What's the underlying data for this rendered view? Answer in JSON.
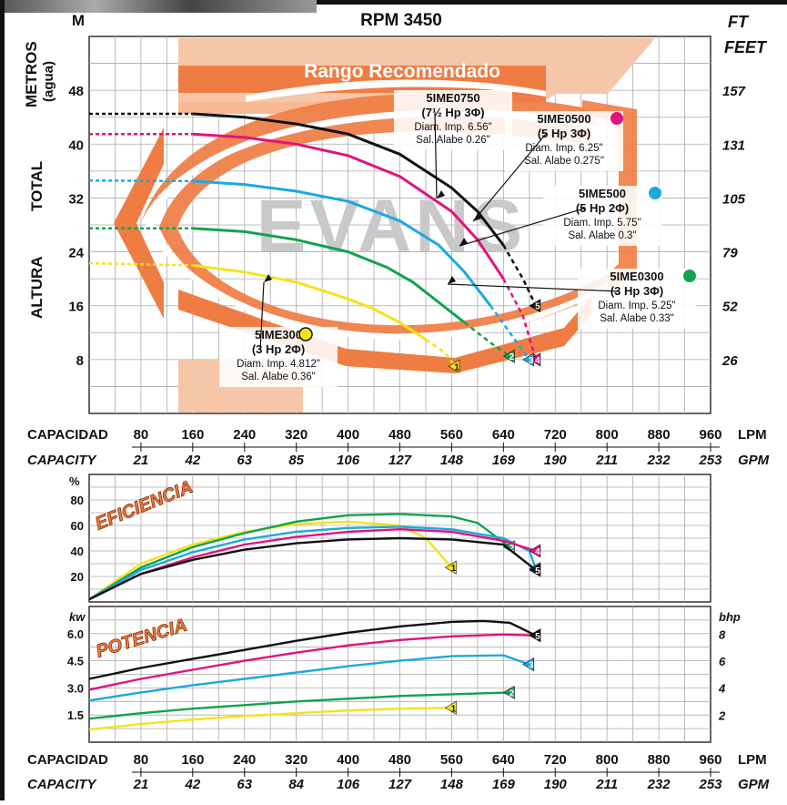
{
  "header": {
    "rpm": "RPM 3450",
    "unit_m": "M",
    "unit_ft": "FT",
    "unit_feet": "FEET",
    "axis_left_1": "METROS",
    "axis_left_2": "(agua)",
    "axis_left_3": "TOTAL",
    "axis_left_4": "ALTURA",
    "range_label": "Rango Recomendado",
    "watermark": "EVANS"
  },
  "axes": {
    "capacidad": "CAPACIDAD",
    "capacity": "CAPACITY",
    "lpm": "LPM",
    "gpm": "GPM",
    "eff_pct": "%",
    "kw": "kw",
    "bhp": "bhp",
    "eficiencia": "EFICIENCIA",
    "potencia": "POTENCIA"
  },
  "chart_data": [
    {
      "type": "line",
      "title": "RPM 3450",
      "xlabel": "CAPACIDAD (LPM) / CAPACITY (GPM)",
      "ylabel": "ALTURA TOTAL METROS (agua) / FT FEET",
      "x_ticks_lpm": [
        80,
        160,
        240,
        320,
        400,
        480,
        560,
        640,
        720,
        800,
        880,
        960
      ],
      "x_ticks_gpm": [
        21,
        42,
        63,
        85,
        106,
        127,
        148,
        169,
        190,
        211,
        232,
        253
      ],
      "x_ticks_gpm_bottom": [
        21,
        42,
        63,
        84,
        106,
        127,
        148,
        169,
        190,
        211,
        232,
        253
      ],
      "xlim": [
        0,
        960
      ],
      "ylim": [
        0,
        56
      ],
      "y_ticks_m": [
        8,
        16,
        24,
        32,
        40,
        48
      ],
      "y_ticks_ft": [
        26,
        52,
        79,
        105,
        131,
        157
      ],
      "grid": true,
      "series": [
        {
          "name": "5IME0750",
          "hp": "(7½ Hp 3Φ)",
          "imp": "Diam. Imp. 6.56\"",
          "alabe": "Sal. Alabe 0.26\"",
          "color": "#111111",
          "tag": "5",
          "x": [
            0,
            160,
            240,
            320,
            400,
            480,
            560,
            600,
            640,
            670,
            690
          ],
          "y": [
            44.5,
            44.5,
            44,
            43,
            41.5,
            38.5,
            33.5,
            30,
            25,
            20,
            16
          ]
        },
        {
          "name": "5IME0500",
          "hp": "(5 Hp 3Φ)",
          "imp": "Diam. Imp. 6.25\"",
          "alabe": "Sal. Alabe 0.275\"",
          "color": "#e2127f",
          "tag": "4",
          "x": [
            0,
            160,
            240,
            320,
            400,
            480,
            560,
            600,
            640,
            670,
            690
          ],
          "y": [
            41.5,
            41.5,
            41,
            40,
            38.3,
            35.2,
            30,
            25.8,
            20,
            14.5,
            8
          ]
        },
        {
          "name": "5IME500",
          "hp": "(5 Hp 2Φ)",
          "imp": "Diam. Imp. 5.75\"",
          "alabe": "Sal. Alabe 0.3\"",
          "color": "#1ba9e0",
          "tag": "3",
          "x": [
            0,
            160,
            240,
            320,
            400,
            480,
            540,
            580,
            620,
            650,
            680
          ],
          "y": [
            34.6,
            34.5,
            34,
            33,
            31.5,
            28.6,
            25,
            21,
            16,
            12,
            8
          ]
        },
        {
          "name": "5IME0300",
          "hp": "(3 Hp 3Φ)",
          "imp": "Diam. Imp. 5.25\"",
          "alabe": "Sal. Alabe 0.33\"",
          "color": "#11a34f",
          "tag": "2",
          "x": [
            0,
            160,
            240,
            320,
            400,
            460,
            500,
            540,
            580,
            620,
            650
          ],
          "y": [
            27.5,
            27.5,
            27,
            25.8,
            24,
            21.7,
            19.5,
            16.5,
            13.5,
            10.5,
            8.5
          ]
        },
        {
          "name": "5IME300",
          "hp": "(3 Hp 2Φ)",
          "imp": "Diam. Imp. 4.812\"",
          "alabe": "Sal. Alabe 0.36\"",
          "color": "#f5e21a",
          "tag": "1",
          "x": [
            0,
            160,
            240,
            320,
            400,
            440,
            480,
            520,
            550,
            565
          ],
          "y": [
            22.3,
            22,
            21,
            19.5,
            17,
            15.5,
            13.5,
            11,
            9,
            7
          ]
        }
      ]
    },
    {
      "type": "line",
      "title": "EFICIENCIA",
      "ylabel": "%",
      "y_ticks": [
        20,
        40,
        60,
        80
      ],
      "ylim": [
        0,
        100
      ],
      "xlim": [
        0,
        960
      ],
      "grid": true,
      "series": [
        {
          "name": "1",
          "color": "#f5e21a",
          "x": [
            0,
            80,
            160,
            240,
            320,
            400,
            480,
            520,
            560
          ],
          "y": [
            2,
            30,
            45,
            55,
            61,
            63,
            60,
            50,
            27
          ]
        },
        {
          "name": "2",
          "color": "#11a34f",
          "x": [
            0,
            80,
            160,
            240,
            320,
            400,
            480,
            560,
            600,
            650
          ],
          "y": [
            2,
            27,
            43,
            54,
            63,
            68,
            69,
            67,
            62,
            43
          ]
        },
        {
          "name": "3",
          "color": "#1ba9e0",
          "x": [
            0,
            80,
            160,
            240,
            320,
            400,
            480,
            560,
            640,
            680,
            690
          ],
          "y": [
            2,
            25,
            39,
            49,
            55,
            58,
            59,
            57,
            50,
            40,
            26
          ]
        },
        {
          "name": "4",
          "color": "#e2127f",
          "x": [
            0,
            80,
            160,
            240,
            320,
            400,
            480,
            560,
            640,
            690
          ],
          "y": [
            2,
            22,
            35,
            45,
            51,
            55,
            57,
            55,
            48,
            40
          ]
        },
        {
          "name": "5",
          "color": "#111111",
          "x": [
            0,
            80,
            160,
            240,
            320,
            400,
            480,
            560,
            640,
            690
          ],
          "y": [
            2,
            22,
            33,
            41,
            46,
            49,
            50,
            49,
            45,
            25
          ]
        }
      ]
    },
    {
      "type": "line",
      "title": "POTENCIA",
      "ylabel": "kw",
      "y2label": "bhp",
      "y_ticks_kw": [
        1.5,
        3.0,
        4.5,
        6.0
      ],
      "y_ticks_bhp": [
        2,
        4,
        6,
        8
      ],
      "ylim": [
        0,
        7.5
      ],
      "xlim": [
        0,
        960
      ],
      "grid": true,
      "series": [
        {
          "name": "1",
          "color": "#f5e21a",
          "x": [
            0,
            80,
            160,
            240,
            320,
            400,
            480,
            560
          ],
          "y": [
            0.7,
            1.0,
            1.25,
            1.45,
            1.6,
            1.75,
            1.85,
            1.9
          ]
        },
        {
          "name": "2",
          "color": "#11a34f",
          "x": [
            0,
            80,
            160,
            240,
            320,
            400,
            480,
            560,
            650
          ],
          "y": [
            1.3,
            1.6,
            1.85,
            2.05,
            2.25,
            2.4,
            2.55,
            2.65,
            2.75
          ]
        },
        {
          "name": "3",
          "color": "#1ba9e0",
          "x": [
            0,
            80,
            160,
            240,
            320,
            400,
            480,
            560,
            640,
            680
          ],
          "y": [
            2.3,
            2.75,
            3.15,
            3.5,
            3.85,
            4.2,
            4.5,
            4.75,
            4.8,
            4.3
          ]
        },
        {
          "name": "4",
          "color": "#e2127f",
          "x": [
            0,
            80,
            160,
            240,
            320,
            400,
            480,
            560,
            640,
            690
          ],
          "y": [
            2.9,
            3.5,
            4.0,
            4.5,
            4.95,
            5.35,
            5.65,
            5.85,
            5.95,
            5.9
          ]
        },
        {
          "name": "5",
          "color": "#111111",
          "x": [
            0,
            80,
            160,
            240,
            320,
            400,
            480,
            560,
            610,
            650,
            690
          ],
          "y": [
            3.5,
            4.1,
            4.6,
            5.1,
            5.6,
            6.05,
            6.4,
            6.65,
            6.7,
            6.6,
            5.9
          ]
        }
      ]
    }
  ]
}
